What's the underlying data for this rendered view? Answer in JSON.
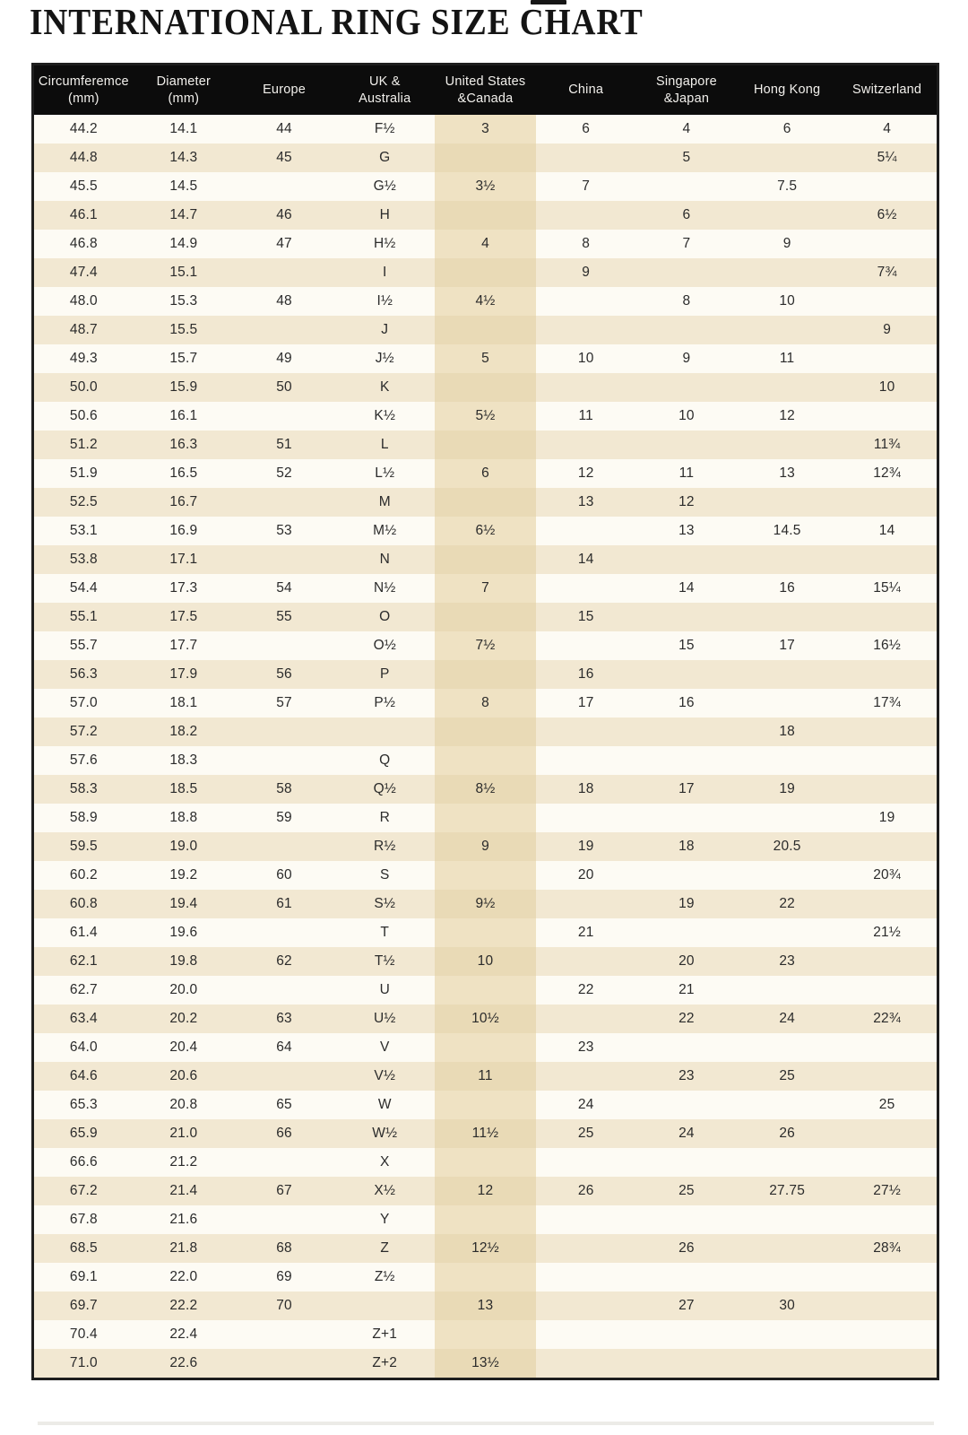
{
  "page": {
    "title": "INTERNATIONAL RING SIZE CHART"
  },
  "colors": {
    "header_bg": "#0c0c0c",
    "header_text": "#f2f0ec",
    "row_light": "#fdfbf4",
    "row_dark": "#f2e8d2",
    "highlight_light": "#efe2c3",
    "highlight_dark": "#e9dab6",
    "border": "#1e1e1e",
    "text": "#2b2b2b"
  },
  "chart_data": {
    "type": "table",
    "title": "INTERNATIONAL RING SIZE CHART",
    "columns": [
      "Circumferemce\n(mm)",
      "Diameter\n(mm)",
      "Europe",
      "UK &\nAustralia",
      "United States\n&Canada",
      "China",
      "Singapore\n&Japan",
      "Hong Kong",
      "Switzerland"
    ],
    "highlight_column": "United States &Canada",
    "highlight_column_index": 4,
    "rows": [
      [
        "44.2",
        "14.1",
        "44",
        "F½",
        "3",
        "6",
        "4",
        "6",
        "4"
      ],
      [
        "44.8",
        "14.3",
        "45",
        "G",
        "",
        "",
        "5",
        "",
        "5¼"
      ],
      [
        "45.5",
        "14.5",
        "",
        "G½",
        "3½",
        "7",
        "",
        "7.5",
        ""
      ],
      [
        "46.1",
        "14.7",
        "46",
        "H",
        "",
        "",
        "6",
        "",
        "6½"
      ],
      [
        "46.8",
        "14.9",
        "47",
        "H½",
        "4",
        "8",
        "7",
        "9",
        ""
      ],
      [
        "47.4",
        "15.1",
        "",
        "I",
        "",
        "9",
        "",
        "",
        "7¾"
      ],
      [
        "48.0",
        "15.3",
        "48",
        "I½",
        "4½",
        "",
        "8",
        "10",
        ""
      ],
      [
        "48.7",
        "15.5",
        "",
        "J",
        "",
        "",
        "",
        "",
        "9"
      ],
      [
        "49.3",
        "15.7",
        "49",
        "J½",
        "5",
        "10",
        "9",
        "11",
        ""
      ],
      [
        "50.0",
        "15.9",
        "50",
        "K",
        "",
        "",
        "",
        "",
        "10"
      ],
      [
        "50.6",
        "16.1",
        "",
        "K½",
        "5½",
        "11",
        "10",
        "12",
        ""
      ],
      [
        "51.2",
        "16.3",
        "51",
        "L",
        "",
        "",
        "",
        "",
        "11¾"
      ],
      [
        "51.9",
        "16.5",
        "52",
        "L½",
        "6",
        "12",
        "11",
        "13",
        "12¾"
      ],
      [
        "52.5",
        "16.7",
        "",
        "M",
        "",
        "13",
        "12",
        "",
        ""
      ],
      [
        "53.1",
        "16.9",
        "53",
        "M½",
        "6½",
        "",
        "13",
        "14.5",
        "14"
      ],
      [
        "53.8",
        "17.1",
        "",
        "N",
        "",
        "14",
        "",
        "",
        ""
      ],
      [
        "54.4",
        "17.3",
        "54",
        "N½",
        "7",
        "",
        "14",
        "16",
        "15¼"
      ],
      [
        "55.1",
        "17.5",
        "55",
        "O",
        "",
        "15",
        "",
        "",
        ""
      ],
      [
        "55.7",
        "17.7",
        "",
        "O½",
        "7½",
        "",
        "15",
        "17",
        "16½"
      ],
      [
        "56.3",
        "17.9",
        "56",
        "P",
        "",
        "16",
        "",
        "",
        ""
      ],
      [
        "57.0",
        "18.1",
        "57",
        "P½",
        "8",
        "17",
        "16",
        "",
        "17¾"
      ],
      [
        "57.2",
        "18.2",
        "",
        "",
        "",
        "",
        "",
        "18",
        ""
      ],
      [
        "57.6",
        "18.3",
        "",
        "Q",
        "",
        "",
        "",
        "",
        ""
      ],
      [
        "58.3",
        "18.5",
        "58",
        "Q½",
        "8½",
        "18",
        "17",
        "19",
        ""
      ],
      [
        "58.9",
        "18.8",
        "59",
        "R",
        "",
        "",
        "",
        "",
        "19"
      ],
      [
        "59.5",
        "19.0",
        "",
        "R½",
        "9",
        "19",
        "18",
        "20.5",
        ""
      ],
      [
        "60.2",
        "19.2",
        "60",
        "S",
        "",
        "20",
        "",
        "",
        "20¾"
      ],
      [
        "60.8",
        "19.4",
        "61",
        "S½",
        "9½",
        "",
        "19",
        "22",
        ""
      ],
      [
        "61.4",
        "19.6",
        "",
        "T",
        "",
        "21",
        "",
        "",
        "21½"
      ],
      [
        "62.1",
        "19.8",
        "62",
        "T½",
        "10",
        "",
        "20",
        "23",
        ""
      ],
      [
        "62.7",
        "20.0",
        "",
        "U",
        "",
        "22",
        "21",
        "",
        ""
      ],
      [
        "63.4",
        "20.2",
        "63",
        "U½",
        "10½",
        "",
        "22",
        "24",
        "22¾"
      ],
      [
        "64.0",
        "20.4",
        "64",
        "V",
        "",
        "23",
        "",
        "",
        ""
      ],
      [
        "64.6",
        "20.6",
        "",
        "V½",
        "11",
        "",
        "23",
        "25",
        ""
      ],
      [
        "65.3",
        "20.8",
        "65",
        "W",
        "",
        "24",
        "",
        "",
        "25"
      ],
      [
        "65.9",
        "21.0",
        "66",
        "W½",
        "11½",
        "25",
        "24",
        "26",
        ""
      ],
      [
        "66.6",
        "21.2",
        "",
        "X",
        "",
        "",
        "",
        "",
        ""
      ],
      [
        "67.2",
        "21.4",
        "67",
        "X½",
        "12",
        "26",
        "25",
        "27.75",
        "27½"
      ],
      [
        "67.8",
        "21.6",
        "",
        "Y",
        "",
        "",
        "",
        "",
        ""
      ],
      [
        "68.5",
        "21.8",
        "68",
        "Z",
        "12½",
        "",
        "26",
        "",
        "28¾"
      ],
      [
        "69.1",
        "22.0",
        "69",
        "Z½",
        "",
        "",
        "",
        "",
        ""
      ],
      [
        "69.7",
        "22.2",
        "70",
        "",
        "13",
        "",
        "27",
        "30",
        ""
      ],
      [
        "70.4",
        "22.4",
        "",
        "Z+1",
        "",
        "",
        "",
        "",
        ""
      ],
      [
        "71.0",
        "22.6",
        "",
        "Z+2",
        "13½",
        "",
        "",
        "",
        ""
      ]
    ]
  }
}
